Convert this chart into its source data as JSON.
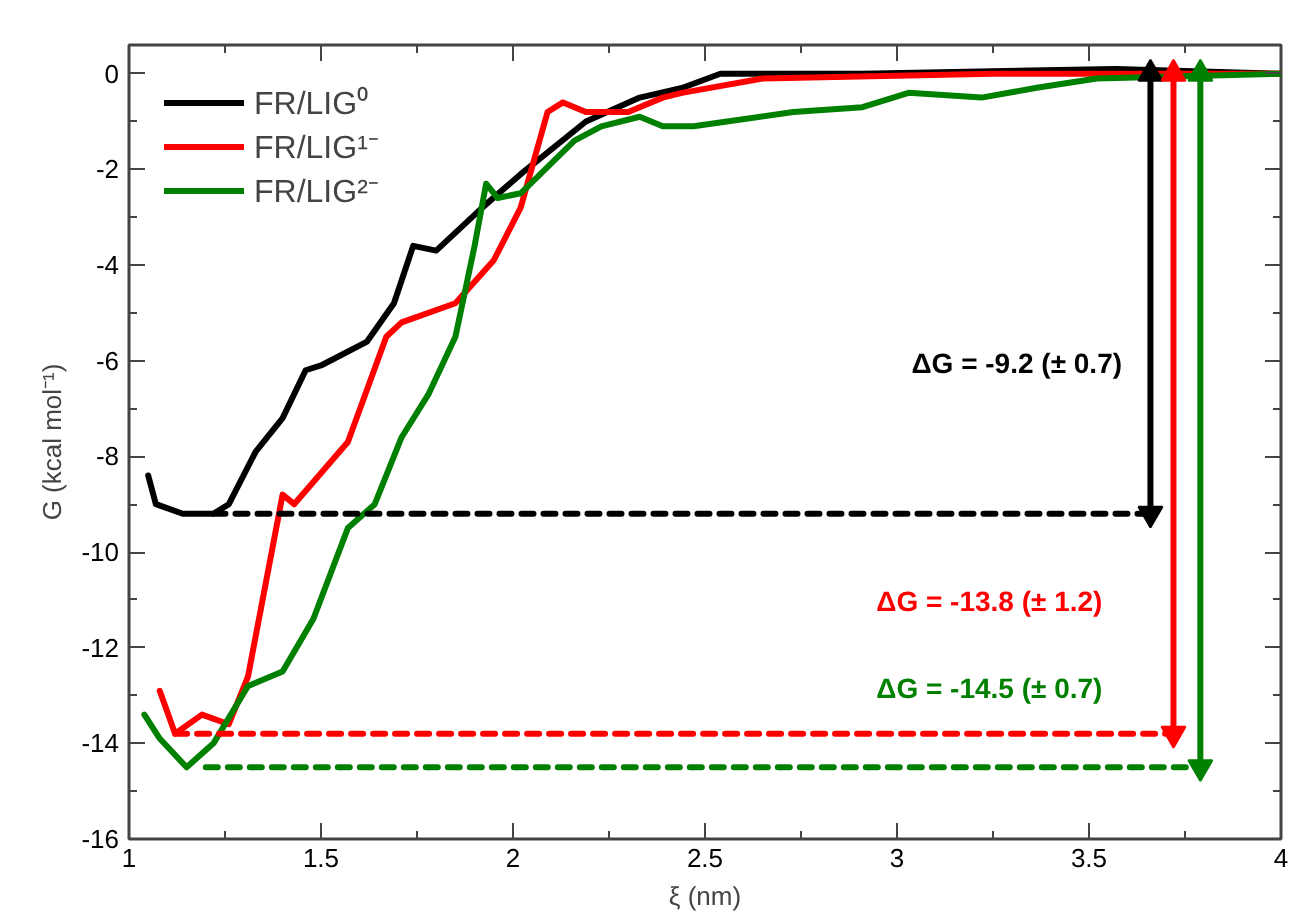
{
  "chart_data": {
    "type": "line",
    "xlabel": "ξ (nm)",
    "ylabel": "G (kcal mol⁻¹)",
    "xlim": [
      1,
      4
    ],
    "ylim": [
      -16,
      0.6
    ],
    "xticks": [
      1,
      {
        "value": 1.25,
        "label": null
      },
      1.5,
      {
        "value": 1.75,
        "label": null
      },
      2,
      {
        "value": 2.25,
        "label": null
      },
      2.5,
      {
        "value": 2.75,
        "label": null
      },
      3,
      {
        "value": 3.25,
        "label": null
      },
      3.5,
      {
        "value": 3.75,
        "label": null
      },
      4
    ],
    "yticks": [
      -16,
      {
        "value": -15,
        "label": null
      },
      -14,
      {
        "value": -13,
        "label": null
      },
      -12,
      {
        "value": -11,
        "label": null
      },
      -10,
      {
        "value": -9,
        "label": null
      },
      -8,
      {
        "value": -7,
        "label": null
      },
      -6,
      {
        "value": -5,
        "label": null
      },
      -4,
      {
        "value": -3,
        "label": null
      },
      -2,
      {
        "value": -1,
        "label": null
      },
      0
    ],
    "grid": false,
    "legend": "top left",
    "line_style": "solid",
    "series": [
      {
        "name": "FR/LIG⁰",
        "color": "#000000",
        "x": [
          1.05,
          1.07,
          1.14,
          1.22,
          1.26,
          1.33,
          1.4,
          1.46,
          1.5,
          1.62,
          1.69,
          1.74,
          1.8,
          1.92,
          2.02,
          2.19,
          2.33,
          2.44,
          2.54,
          2.91,
          3.57,
          4.0
        ],
        "values": [
          -8.4,
          -9.0,
          -9.2,
          -9.2,
          -9.0,
          -7.9,
          -7.2,
          -6.2,
          -6.1,
          -5.6,
          -4.8,
          -3.6,
          -3.7,
          -2.8,
          -2.1,
          -1.0,
          -0.5,
          -0.3,
          0.0,
          0.0,
          0.1,
          0.0
        ]
      },
      {
        "name": "FR/LIG¹⁻",
        "color": "#ff0000",
        "x": [
          1.08,
          1.12,
          1.19,
          1.26,
          1.31,
          1.4,
          1.43,
          1.57,
          1.67,
          1.71,
          1.85,
          1.95,
          2.02,
          2.09,
          2.13,
          2.19,
          2.3,
          2.39,
          2.44,
          2.65,
          3.25,
          4.0
        ],
        "values": [
          -12.9,
          -13.8,
          -13.4,
          -13.6,
          -12.6,
          -8.8,
          -9.0,
          -7.7,
          -5.5,
          -5.2,
          -4.8,
          -3.9,
          -2.8,
          -0.8,
          -0.6,
          -0.8,
          -0.8,
          -0.5,
          -0.4,
          -0.1,
          0.0,
          0.0
        ]
      },
      {
        "name": "FR/LIG²⁻",
        "color": "#008000",
        "x": [
          1.04,
          1.08,
          1.15,
          1.22,
          1.31,
          1.4,
          1.48,
          1.57,
          1.64,
          1.71,
          1.78,
          1.85,
          1.9,
          1.93,
          1.96,
          2.02,
          2.16,
          2.23,
          2.33,
          2.39,
          2.47,
          2.73,
          2.91,
          3.03,
          3.22,
          3.36,
          3.52,
          4.0
        ],
        "values": [
          -13.4,
          -13.9,
          -14.5,
          -14.0,
          -12.8,
          -12.5,
          -11.4,
          -9.5,
          -9.0,
          -7.6,
          -6.7,
          -5.5,
          -3.6,
          -2.3,
          -2.6,
          -2.5,
          -1.4,
          -1.1,
          -0.9,
          -1.1,
          -1.1,
          -0.8,
          -0.7,
          -0.4,
          -0.5,
          -0.3,
          -0.1,
          0.0
        ]
      },
      {
        "color": "#000000",
        "line_style": "dashed",
        "x": [
          1.22,
          3.66
        ],
        "values": [
          -9.2,
          -9.2
        ]
      },
      {
        "color": "#ff0000",
        "line_style": "dashed",
        "x": [
          1.12,
          3.72
        ],
        "values": [
          -13.8,
          -13.8
        ]
      },
      {
        "color": "#008000",
        "line_style": "dashed",
        "x": [
          1.2,
          3.79
        ],
        "values": [
          -14.5,
          -14.5
        ]
      },
      {
        "color": "#000000",
        "marker": "triangle",
        "x": [
          3.66,
          3.66
        ],
        "values": [
          0.0,
          -9.2
        ]
      },
      {
        "color": "#ff0000",
        "marker": "triangle",
        "x": [
          3.72,
          3.72
        ],
        "values": [
          0.0,
          -13.8
        ]
      },
      {
        "color": "#008000",
        "marker": "triangle",
        "x": [
          3.79,
          3.79
        ],
        "values": [
          0.0,
          -14.5
        ]
      }
    ],
    "annotations": [
      "ΔG = -9.2 (± 0.7)",
      "ΔG = -13.8 (± 1.2)",
      "ΔG = -14.5 (± 0.7)"
    ]
  }
}
